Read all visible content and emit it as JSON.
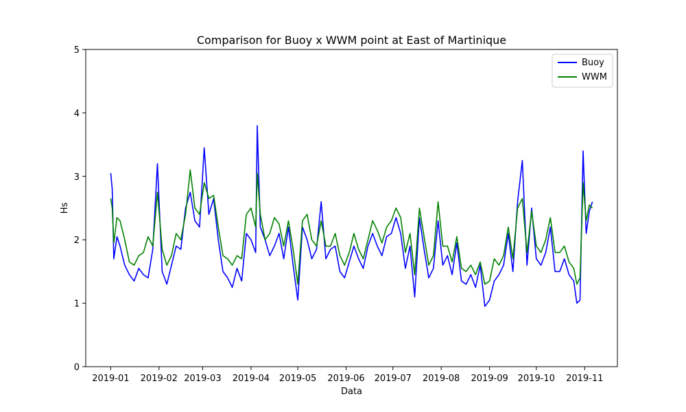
{
  "chart_data": {
    "type": "line",
    "title": "Comparison for Buoy x WWM  point at East of Martinique",
    "xlabel": "Data",
    "ylabel": "Hs",
    "ylim": [
      0,
      5
    ],
    "yticks": [
      0,
      1,
      2,
      3,
      4,
      5
    ],
    "xlim": [
      "2018-12-16",
      "2019-11-22"
    ],
    "xticks": [
      "2019-01",
      "2019-02",
      "2019-03",
      "2019-04",
      "2019-05",
      "2019-06",
      "2019-07",
      "2019-08",
      "2019-09",
      "2019-10",
      "2019-11"
    ],
    "grid": false,
    "legend_position": "top-right",
    "series": [
      {
        "name": "Buoy",
        "color": "#0000ff",
        "x": [
          "2019-01-01",
          "2019-01-02",
          "2019-01-03",
          "2019-01-05",
          "2019-01-07",
          "2019-01-10",
          "2019-01-13",
          "2019-01-16",
          "2019-01-19",
          "2019-01-22",
          "2019-01-25",
          "2019-01-28",
          "2019-01-31",
          "2019-02-03",
          "2019-02-06",
          "2019-02-09",
          "2019-02-12",
          "2019-02-15",
          "2019-02-18",
          "2019-02-21",
          "2019-02-24",
          "2019-02-27",
          "2019-03-02",
          "2019-03-05",
          "2019-03-08",
          "2019-03-11",
          "2019-03-14",
          "2019-03-17",
          "2019-03-20",
          "2019-03-23",
          "2019-03-26",
          "2019-03-29",
          "2019-04-01",
          "2019-04-04",
          "2019-04-05",
          "2019-04-07",
          "2019-04-10",
          "2019-04-13",
          "2019-04-16",
          "2019-04-19",
          "2019-04-22",
          "2019-04-25",
          "2019-04-28",
          "2019-05-01",
          "2019-05-04",
          "2019-05-07",
          "2019-05-10",
          "2019-05-13",
          "2019-05-16",
          "2019-05-19",
          "2019-05-22",
          "2019-05-25",
          "2019-05-28",
          "2019-05-31",
          "2019-06-03",
          "2019-06-06",
          "2019-06-09",
          "2019-06-12",
          "2019-06-15",
          "2019-06-18",
          "2019-06-21",
          "2019-06-24",
          "2019-06-27",
          "2019-06-30",
          "2019-07-03",
          "2019-07-06",
          "2019-07-09",
          "2019-07-12",
          "2019-07-15",
          "2019-07-18",
          "2019-07-21",
          "2019-07-24",
          "2019-07-27",
          "2019-07-30",
          "2019-08-02",
          "2019-08-05",
          "2019-08-08",
          "2019-08-11",
          "2019-08-14",
          "2019-08-17",
          "2019-08-20",
          "2019-08-23",
          "2019-08-26",
          "2019-08-29",
          "2019-09-01",
          "2019-09-04",
          "2019-09-07",
          "2019-09-10",
          "2019-09-13",
          "2019-09-16",
          "2019-09-19",
          "2019-09-22",
          "2019-09-25",
          "2019-09-28",
          "2019-10-01",
          "2019-10-04",
          "2019-10-07",
          "2019-10-10",
          "2019-10-13",
          "2019-10-16",
          "2019-10-19",
          "2019-10-22",
          "2019-10-25",
          "2019-10-27",
          "2019-10-29",
          "2019-10-31",
          "2019-11-02",
          "2019-11-04",
          "2019-11-06"
        ],
        "y": [
          3.05,
          2.8,
          1.7,
          2.05,
          1.9,
          1.6,
          1.45,
          1.35,
          1.55,
          1.45,
          1.4,
          1.85,
          3.2,
          1.5,
          1.3,
          1.6,
          1.9,
          1.85,
          2.5,
          2.75,
          2.3,
          2.2,
          3.45,
          2.4,
          2.65,
          2.0,
          1.5,
          1.4,
          1.25,
          1.55,
          1.35,
          2.1,
          2.0,
          1.8,
          3.8,
          2.2,
          2.0,
          1.75,
          1.9,
          2.1,
          1.7,
          2.2,
          1.6,
          1.05,
          2.2,
          2.0,
          1.7,
          1.85,
          2.6,
          1.7,
          1.85,
          1.9,
          1.5,
          1.4,
          1.65,
          1.9,
          1.7,
          1.55,
          1.9,
          2.1,
          1.9,
          1.75,
          2.05,
          2.1,
          2.35,
          2.1,
          1.55,
          1.9,
          1.1,
          2.35,
          1.85,
          1.4,
          1.55,
          2.3,
          1.6,
          1.75,
          1.45,
          1.95,
          1.35,
          1.3,
          1.45,
          1.25,
          1.6,
          0.95,
          1.05,
          1.35,
          1.45,
          1.6,
          2.1,
          1.5,
          2.6,
          3.25,
          1.6,
          2.5,
          1.7,
          1.6,
          1.8,
          2.2,
          1.5,
          1.5,
          1.7,
          1.45,
          1.35,
          1.0,
          1.05,
          3.4,
          2.1,
          2.45,
          2.6
        ]
      },
      {
        "name": "WWM",
        "color": "#008000",
        "x": [
          "2019-01-01",
          "2019-01-02",
          "2019-01-03",
          "2019-01-05",
          "2019-01-07",
          "2019-01-10",
          "2019-01-13",
          "2019-01-16",
          "2019-01-19",
          "2019-01-22",
          "2019-01-25",
          "2019-01-28",
          "2019-01-31",
          "2019-02-03",
          "2019-02-06",
          "2019-02-09",
          "2019-02-12",
          "2019-02-15",
          "2019-02-18",
          "2019-02-21",
          "2019-02-24",
          "2019-02-27",
          "2019-03-02",
          "2019-03-05",
          "2019-03-08",
          "2019-03-11",
          "2019-03-14",
          "2019-03-17",
          "2019-03-20",
          "2019-03-23",
          "2019-03-26",
          "2019-03-29",
          "2019-04-01",
          "2019-04-04",
          "2019-04-05",
          "2019-04-07",
          "2019-04-10",
          "2019-04-13",
          "2019-04-16",
          "2019-04-19",
          "2019-04-22",
          "2019-04-25",
          "2019-04-28",
          "2019-05-01",
          "2019-05-04",
          "2019-05-07",
          "2019-05-10",
          "2019-05-13",
          "2019-05-16",
          "2019-05-19",
          "2019-05-22",
          "2019-05-25",
          "2019-05-28",
          "2019-05-31",
          "2019-06-03",
          "2019-06-06",
          "2019-06-09",
          "2019-06-12",
          "2019-06-15",
          "2019-06-18",
          "2019-06-21",
          "2019-06-24",
          "2019-06-27",
          "2019-06-30",
          "2019-07-03",
          "2019-07-06",
          "2019-07-09",
          "2019-07-12",
          "2019-07-15",
          "2019-07-18",
          "2019-07-21",
          "2019-07-24",
          "2019-07-27",
          "2019-07-30",
          "2019-08-02",
          "2019-08-05",
          "2019-08-08",
          "2019-08-11",
          "2019-08-14",
          "2019-08-17",
          "2019-08-20",
          "2019-08-23",
          "2019-08-26",
          "2019-08-29",
          "2019-09-01",
          "2019-09-04",
          "2019-09-07",
          "2019-09-10",
          "2019-09-13",
          "2019-09-16",
          "2019-09-19",
          "2019-09-22",
          "2019-09-25",
          "2019-09-28",
          "2019-10-01",
          "2019-10-04",
          "2019-10-07",
          "2019-10-10",
          "2019-10-13",
          "2019-10-16",
          "2019-10-19",
          "2019-10-22",
          "2019-10-25",
          "2019-10-27",
          "2019-10-29",
          "2019-10-31",
          "2019-11-02",
          "2019-11-04",
          "2019-11-06"
        ],
        "y": [
          2.65,
          2.5,
          1.95,
          2.35,
          2.3,
          2.0,
          1.65,
          1.6,
          1.75,
          1.8,
          2.05,
          1.9,
          2.75,
          1.85,
          1.6,
          1.75,
          2.1,
          2.0,
          2.4,
          3.1,
          2.5,
          2.4,
          2.9,
          2.65,
          2.7,
          2.2,
          1.75,
          1.7,
          1.6,
          1.75,
          1.7,
          2.4,
          2.5,
          2.2,
          3.05,
          2.4,
          2.0,
          2.1,
          2.35,
          2.25,
          1.9,
          2.3,
          1.85,
          1.3,
          2.3,
          2.4,
          2.0,
          1.9,
          2.3,
          1.9,
          1.9,
          2.1,
          1.75,
          1.6,
          1.8,
          2.1,
          1.85,
          1.7,
          2.0,
          2.3,
          2.15,
          1.95,
          2.2,
          2.3,
          2.5,
          2.35,
          1.8,
          2.1,
          1.45,
          2.5,
          2.05,
          1.6,
          1.75,
          2.6,
          1.9,
          1.9,
          1.65,
          2.05,
          1.55,
          1.5,
          1.6,
          1.45,
          1.65,
          1.3,
          1.35,
          1.7,
          1.6,
          1.75,
          2.2,
          1.7,
          2.5,
          2.65,
          1.8,
          2.45,
          1.9,
          1.8,
          2.0,
          2.35,
          1.8,
          1.8,
          1.9,
          1.65,
          1.55,
          1.3,
          1.4,
          2.9,
          2.3,
          2.55,
          2.5
        ]
      }
    ]
  }
}
